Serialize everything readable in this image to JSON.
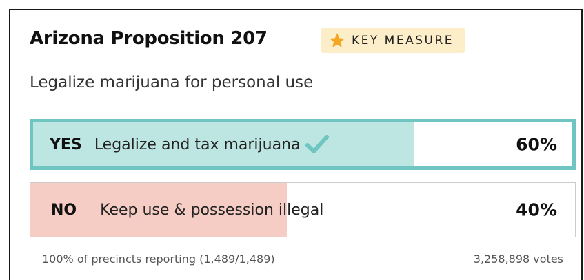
{
  "measure": {
    "title": "Arizona Proposition 207",
    "badge_label": "KEY MEASURE",
    "badge_icon": "star-icon",
    "subtitle": "Legalize marijuana for personal use"
  },
  "options": [
    {
      "key": "yes",
      "label": "YES",
      "description": "Legalize and tax marijuana",
      "percent_text": "60%",
      "percent_value": 60,
      "winner": true,
      "fill_color": "#bde5e2",
      "border_color": "#6fc5c1",
      "winner_icon": "checkmark-icon"
    },
    {
      "key": "no",
      "label": "NO",
      "description": "Keep use & possession illegal",
      "percent_text": "40%",
      "percent_value": 40,
      "winner": false,
      "fill_color": "#f6cdc4"
    }
  ],
  "footer": {
    "precincts": "100% of precincts reporting (1,489/1,489)",
    "votes": "3,258,898 votes"
  },
  "colors": {
    "badge_bg": "#fbeec8",
    "star": "#f5a623",
    "check": "#6fc5c1"
  }
}
